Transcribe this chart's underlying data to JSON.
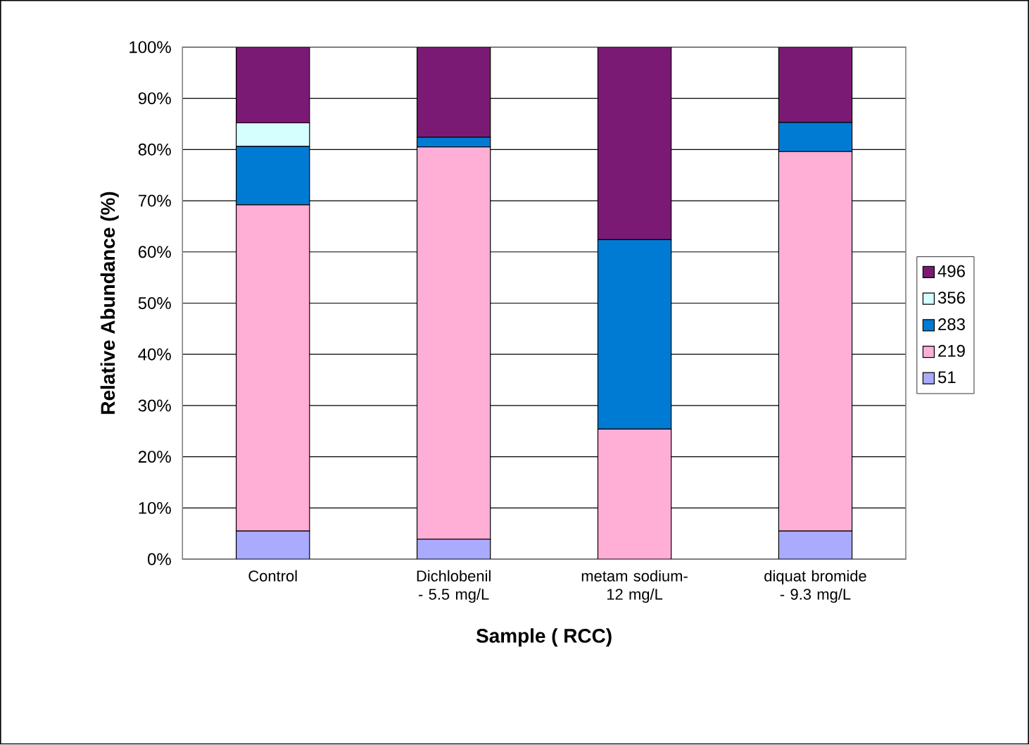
{
  "chart_data": {
    "type": "bar",
    "stacked": true,
    "xlabel": "Sample ( RCC)",
    "ylabel": "Relative Abundance (%)",
    "categories": [
      "Control",
      "Dichlobenil - 5.5 mg/L",
      "metam sodium-12 mg/L",
      "diquat bromide - 9.3 mg/L"
    ],
    "series": [
      {
        "name": "51",
        "color": "#aaaaff",
        "values": [
          5.5,
          3.9,
          0,
          5.5
        ]
      },
      {
        "name": "219",
        "color": "#ffaed6",
        "values": [
          63.7,
          76.6,
          25.4,
          74.1
        ]
      },
      {
        "name": "283",
        "color": "#007bd3",
        "values": [
          11.4,
          1.9,
          37.0,
          5.7
        ]
      },
      {
        "name": "356",
        "color": "#d5ffff",
        "values": [
          4.6,
          0,
          0,
          0
        ]
      },
      {
        "name": "496",
        "color": "#7b1a74",
        "values": [
          14.8,
          17.6,
          37.6,
          14.7
        ]
      }
    ],
    "ylim": [
      0,
      100
    ],
    "yticks": [
      {
        "value": 0,
        "label": "0%"
      },
      {
        "value": 10,
        "label": "10%"
      },
      {
        "value": 20,
        "label": "20%"
      },
      {
        "value": 30,
        "label": "30%"
      },
      {
        "value": 40,
        "label": "40%"
      },
      {
        "value": 50,
        "label": "50%"
      },
      {
        "value": 60,
        "label": "60%"
      },
      {
        "value": 70,
        "label": "70%"
      },
      {
        "value": 80,
        "label": "80%"
      },
      {
        "value": 90,
        "label": "90%"
      },
      {
        "value": 100,
        "label": "100%"
      }
    ],
    "grid": "y",
    "legend": "right"
  }
}
